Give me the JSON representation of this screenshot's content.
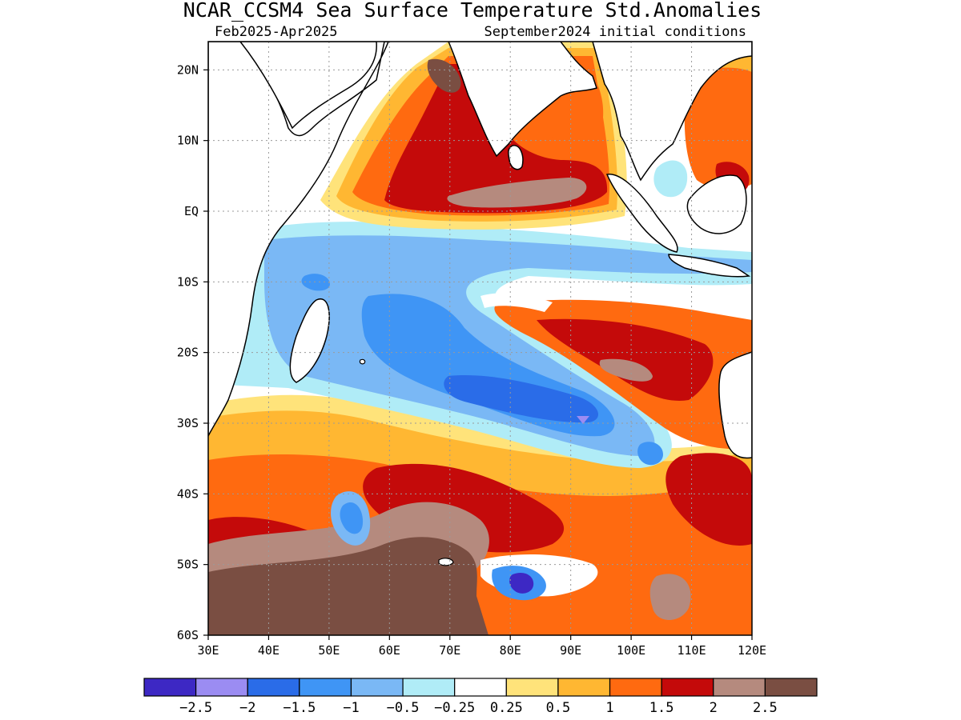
{
  "title": "NCAR_CCSM4 Sea Surface Temperature Std.Anomalies",
  "subtitle_left": "Feb2025-Apr2025",
  "subtitle_right": "September2024 initial conditions",
  "axes": {
    "y_ticks": [
      "20N",
      "10N",
      "EQ",
      "10S",
      "20S",
      "30S",
      "40S",
      "50S",
      "60S"
    ],
    "x_ticks": [
      "30E",
      "40E",
      "50E",
      "60E",
      "70E",
      "80E",
      "90E",
      "100E",
      "110E",
      "120E"
    ],
    "lon_range": [
      30,
      120
    ],
    "lat_range": [
      -60,
      24
    ],
    "grid": true
  },
  "colorbar": {
    "colors": [
      "#3d28c4",
      "#9b8cf2",
      "#2a6ce8",
      "#3f95f5",
      "#7ab8f5",
      "#b0ecf7",
      "#ffffff",
      "#ffe37a",
      "#ffb732",
      "#ff6a10",
      "#c40a0a",
      "#b58a7e",
      "#7a4e42"
    ],
    "labels": [
      "-2.5",
      "-2",
      "-1.5",
      "-1",
      "-0.5",
      "-0.25",
      "0.25",
      "0.5",
      "1",
      "1.5",
      "2",
      "2.5"
    ]
  }
}
